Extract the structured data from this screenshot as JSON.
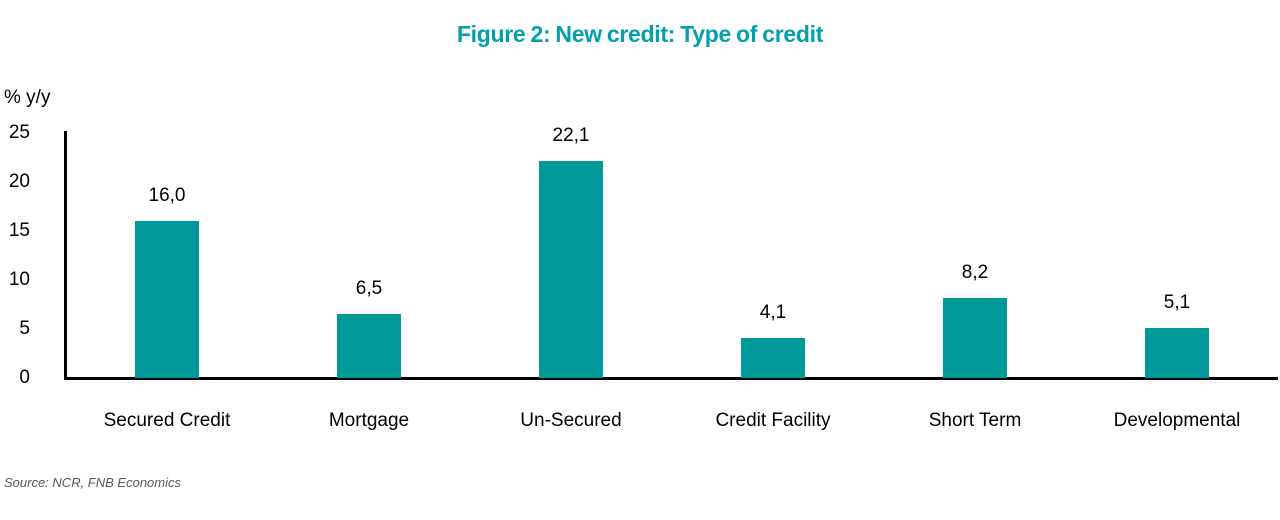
{
  "chart_data": {
    "type": "bar",
    "title": "Figure 2: New credit: Type of credit",
    "categories": [
      "Secured Credit",
      "Mortgage",
      "Un-Secured",
      "Credit Facility",
      "Short Term",
      "Developmental"
    ],
    "values": [
      16.0,
      6.5,
      22.1,
      4.1,
      8.2,
      5.1
    ],
    "value_labels": [
      "16,0",
      "6,5",
      "22,1",
      "4,1",
      "8,2",
      "5,1"
    ],
    "xlabel": "",
    "ylabel": "% y/y",
    "ylim": [
      0,
      25
    ],
    "yticks": [
      0,
      5,
      10,
      15,
      20,
      25
    ],
    "grid": false,
    "legend": false,
    "source": "Source: NCR, FNB Economics"
  },
  "colors": {
    "bar": "#009999",
    "title": "#00A0AC",
    "axis": "#000000",
    "text": "#000000",
    "source": "#595959",
    "background": "#FFFFFF"
  }
}
